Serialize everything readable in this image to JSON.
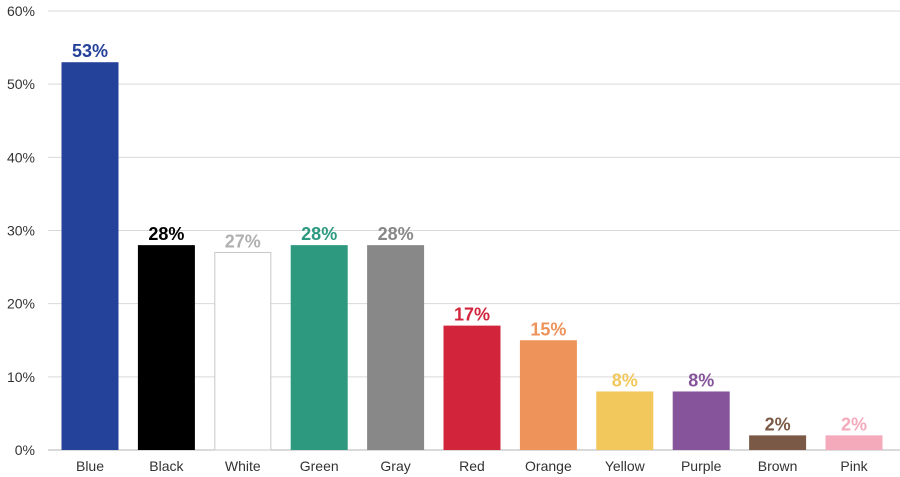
{
  "chart_data": {
    "type": "bar",
    "title": "",
    "xlabel": "",
    "ylabel": "",
    "ylim": [
      0,
      60
    ],
    "yticks": [
      0,
      10,
      20,
      30,
      40,
      50,
      60
    ],
    "ytick_labels": [
      "0%",
      "10%",
      "20%",
      "30%",
      "40%",
      "50%",
      "60%"
    ],
    "grid": true,
    "categories": [
      "Blue",
      "Black",
      "White",
      "Green",
      "Gray",
      "Red",
      "Orange",
      "Yellow",
      "Purple",
      "Brown",
      "Pink"
    ],
    "values": [
      53,
      28,
      27,
      28,
      28,
      17,
      15,
      8,
      8,
      2,
      2
    ],
    "value_labels": [
      "53%",
      "28%",
      "27%",
      "28%",
      "28%",
      "17%",
      "15%",
      "8%",
      "8%",
      "2%",
      "2%"
    ],
    "bar_colors": [
      "#25429a",
      "#000000",
      "#ffffff",
      "#2d9a80",
      "#888888",
      "#d2253c",
      "#ee9359",
      "#f2c75c",
      "#85549b",
      "#7a5a47",
      "#f4aabb"
    ],
    "label_colors": [
      "#25429a",
      "#000000",
      "#b0b0b0",
      "#2d9a80",
      "#888888",
      "#d2253c",
      "#ee9359",
      "#f2c75c",
      "#85549b",
      "#7a5a47",
      "#f4aabb"
    ]
  }
}
